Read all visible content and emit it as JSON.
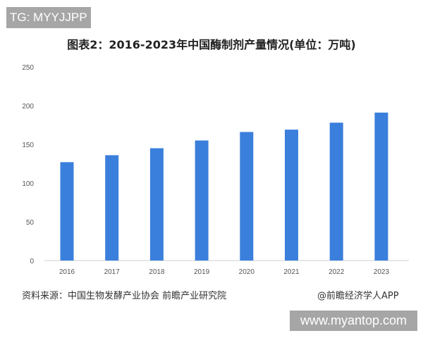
{
  "watermark_top": "TG: MYYJJPP",
  "watermark_bottom": "www.myantop.com",
  "source": "资料来源：中国生物发酵产业协会 前瞻产业研究院",
  "credit": "@前瞻经济学人APP",
  "chart_data": {
    "type": "bar",
    "title": "图表2：2016-2023年中国酶制剂产量情况(单位：万吨)",
    "categories": [
      "2016",
      "2017",
      "2018",
      "2019",
      "2020",
      "2021",
      "2022",
      "2023"
    ],
    "values": [
      127,
      136,
      145,
      155,
      166,
      169,
      178,
      191
    ],
    "yticks": [
      "0",
      "50",
      "100",
      "150",
      "200",
      "250"
    ],
    "ylim": [
      0,
      250
    ],
    "grid": false,
    "bar_color": "#3b7fdc"
  }
}
